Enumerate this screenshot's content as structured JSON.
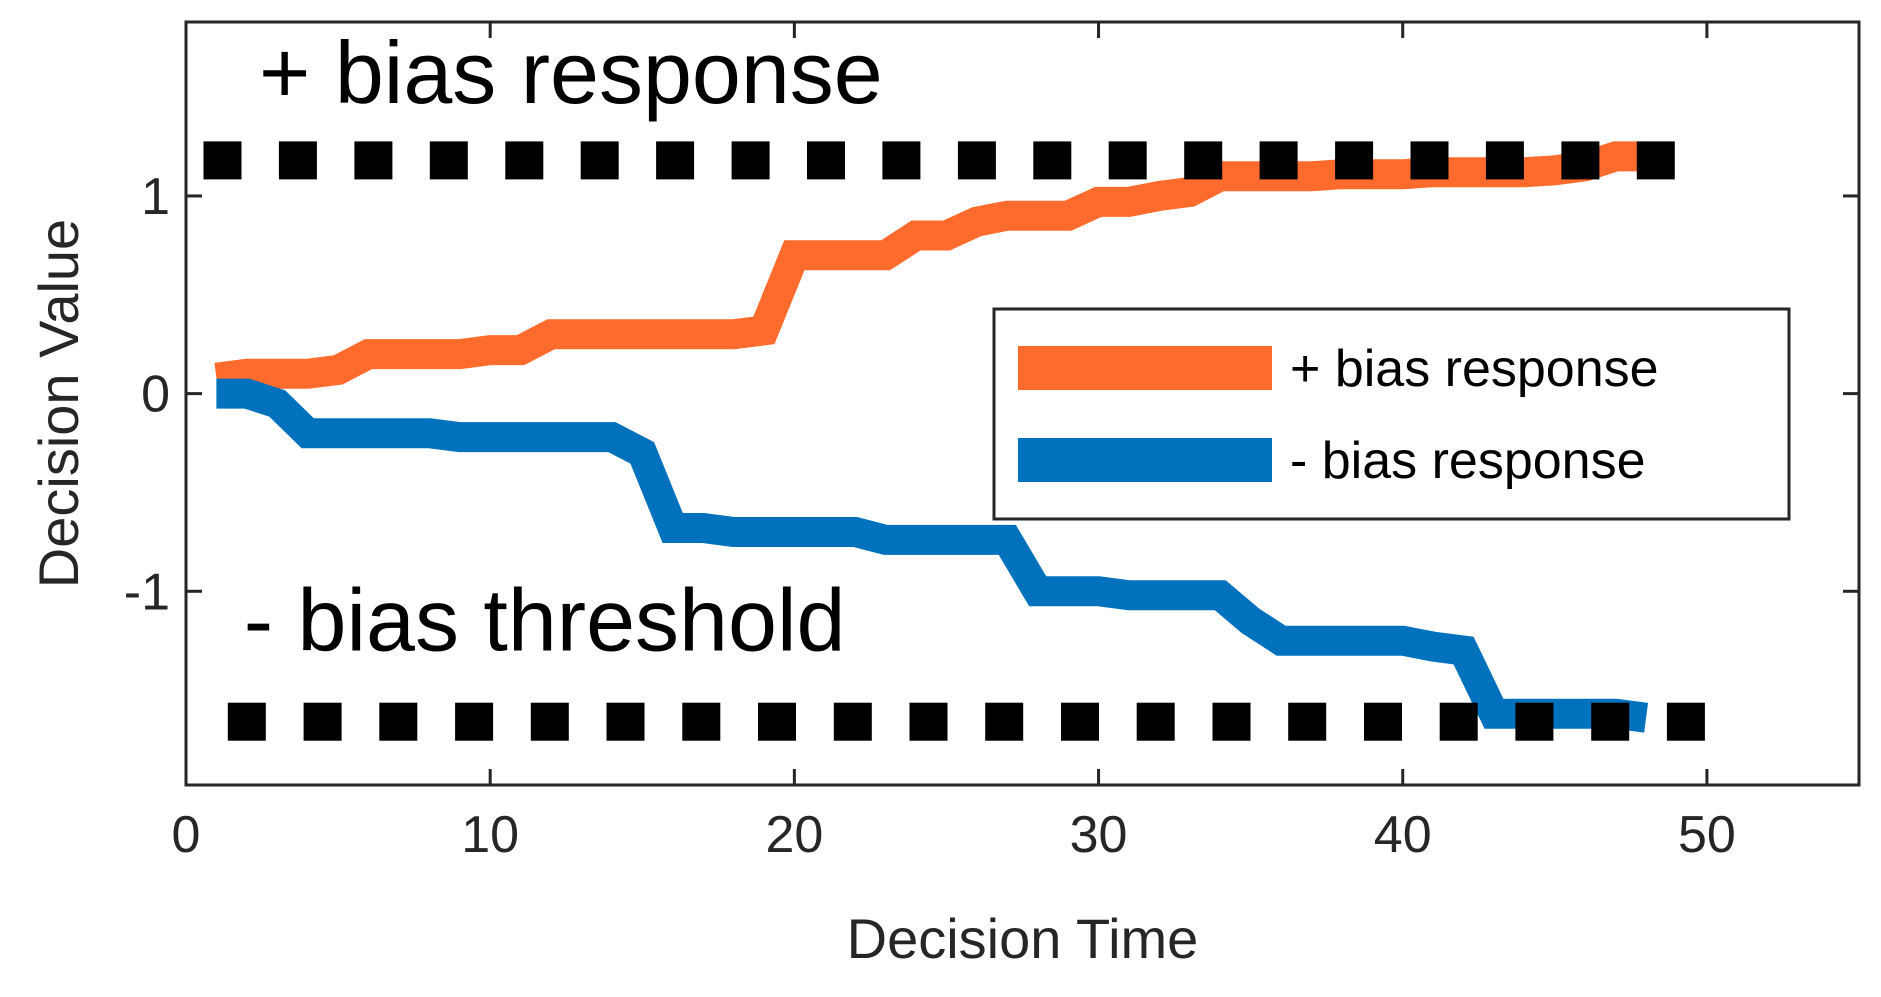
{
  "chart_data": {
    "type": "line",
    "title": "",
    "xlabel": "Decision Time",
    "ylabel": "Decision Value",
    "xlim": [
      0,
      55
    ],
    "ylim": [
      -1.98,
      1.88
    ],
    "xticks": [
      0,
      10,
      20,
      30,
      40,
      50
    ],
    "yticks": [
      -1,
      0,
      1
    ],
    "xtick_labels": [
      "0",
      "10",
      "20",
      "30",
      "40",
      "50"
    ],
    "ytick_labels": [
      "-1",
      "0",
      "1"
    ],
    "grid": false,
    "legend": {
      "position": "right-middle"
    },
    "series": [
      {
        "name": "+ bias response",
        "color": "#FF6B2C",
        "x": [
          1,
          2,
          3,
          4,
          5,
          6,
          7,
          8,
          9,
          10,
          11,
          12,
          13,
          14,
          15,
          16,
          17,
          18,
          19,
          20,
          21,
          22,
          23,
          24,
          25,
          26,
          27,
          28,
          29,
          30,
          31,
          32,
          33,
          34,
          35,
          36,
          37,
          38,
          39,
          40,
          41,
          42,
          43,
          44,
          45,
          46,
          47,
          48
        ],
        "y": [
          0.08,
          0.1,
          0.1,
          0.1,
          0.12,
          0.2,
          0.2,
          0.2,
          0.2,
          0.22,
          0.22,
          0.3,
          0.3,
          0.3,
          0.3,
          0.3,
          0.3,
          0.3,
          0.32,
          0.7,
          0.7,
          0.7,
          0.7,
          0.8,
          0.8,
          0.87,
          0.9,
          0.9,
          0.9,
          0.97,
          0.97,
          1.0,
          1.02,
          1.1,
          1.1,
          1.1,
          1.1,
          1.11,
          1.11,
          1.11,
          1.12,
          1.12,
          1.12,
          1.12,
          1.13,
          1.15,
          1.2,
          1.2
        ]
      },
      {
        "name": "- bias response",
        "color": "#0072BD",
        "x": [
          1,
          2,
          3,
          4,
          5,
          6,
          7,
          8,
          9,
          10,
          11,
          12,
          13,
          14,
          15,
          16,
          17,
          18,
          19,
          20,
          21,
          22,
          23,
          24,
          25,
          26,
          27,
          28,
          29,
          30,
          31,
          32,
          33,
          34,
          35,
          36,
          37,
          38,
          39,
          40,
          41,
          42,
          43,
          44,
          45,
          46,
          47,
          48
        ],
        "y": [
          0.0,
          0.0,
          -0.05,
          -0.2,
          -0.2,
          -0.2,
          -0.2,
          -0.2,
          -0.22,
          -0.22,
          -0.22,
          -0.22,
          -0.22,
          -0.22,
          -0.3,
          -0.68,
          -0.68,
          -0.7,
          -0.7,
          -0.7,
          -0.7,
          -0.7,
          -0.74,
          -0.74,
          -0.74,
          -0.74,
          -0.74,
          -1.0,
          -1.0,
          -1.0,
          -1.02,
          -1.02,
          -1.02,
          -1.02,
          -1.15,
          -1.25,
          -1.25,
          -1.25,
          -1.25,
          -1.25,
          -1.28,
          -1.3,
          -1.62,
          -1.62,
          -1.62,
          -1.62,
          -1.62,
          -1.64
        ]
      }
    ],
    "thresholds": [
      {
        "y": 1.18,
        "x_from": 1.2,
        "x_to": 48.6,
        "marker_spacing": 2.48,
        "color": "#000000"
      },
      {
        "y": -1.66,
        "x_from": 2.0,
        "x_to": 49.4,
        "marker_spacing": 2.49,
        "color": "#000000"
      }
    ],
    "annotations": [
      {
        "text": "+ bias response",
        "x": 2.4,
        "y": 1.47
      },
      {
        "text": "- bias threshold",
        "x": 1.9,
        "y": -1.3
      }
    ]
  }
}
